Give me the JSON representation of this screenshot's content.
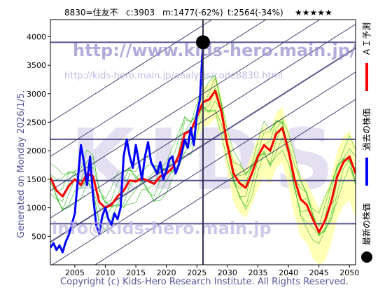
{
  "header": {
    "code_name": "8830=住友不",
    "current": "c:3903",
    "min": "m:1477(-62%)",
    "target": "t:2564(-34%)",
    "rating": "★★★★★"
  },
  "side_text": "Generated on Monday 2026/1/5.",
  "footer": "Copyright (c) Kids-Hero Research Institute. All Rights Reserved.",
  "watermarks": {
    "url": "http://www.kids-hero.main.jp/",
    "sub_url": "http://kids-hero.main.jp/analysis/code8830.html",
    "email": "info@kids-hero.main.jp",
    "logo": "KIDS"
  },
  "legend": [
    {
      "label": "ＡＩ予測",
      "color": "#ff0000",
      "marker": "line"
    },
    {
      "label": "過去の株価",
      "color": "#0000ff",
      "marker": "line"
    },
    {
      "label": "最新の株価",
      "color": "#000000",
      "marker": "dot"
    }
  ],
  "chart_data": {
    "type": "line",
    "xlim": [
      2001,
      2051
    ],
    "ylim": [
      0,
      4300
    ],
    "x_ticks": [
      2005,
      2010,
      2015,
      2020,
      2025,
      2030,
      2035,
      2040,
      2045,
      2050
    ],
    "y_ticks": [
      500,
      1000,
      1500,
      2000,
      2500,
      3000,
      3500,
      4000
    ],
    "horizontal_lines": [
      3903,
      2200,
      1477,
      720
    ],
    "vertical_line": 2026,
    "latest_point": {
      "x": 2026,
      "y": 3903
    },
    "series": [
      {
        "name": "過去の株価",
        "color": "#0000ff",
        "x": [
          2001.0,
          2001.5,
          2002.0,
          2002.5,
          2003.0,
          2003.5,
          2004.0,
          2004.5,
          2005.0,
          2005.5,
          2006.0,
          2006.5,
          2007.0,
          2007.5,
          2008.0,
          2008.5,
          2009.0,
          2009.5,
          2010.0,
          2010.5,
          2011.0,
          2011.5,
          2012.0,
          2012.5,
          2013.0,
          2013.5,
          2014.0,
          2014.5,
          2015.0,
          2015.5,
          2016.0,
          2016.5,
          2017.0,
          2017.5,
          2018.0,
          2018.5,
          2019.0,
          2019.5,
          2020.0,
          2020.5,
          2021.0,
          2021.5,
          2022.0,
          2022.5,
          2023.0,
          2023.5,
          2024.0,
          2024.5,
          2025.0,
          2025.5,
          2026.0
        ],
        "y": [
          300,
          380,
          260,
          340,
          220,
          400,
          520,
          700,
          900,
          1500,
          2100,
          1800,
          1400,
          1900,
          1200,
          700,
          550,
          850,
          1000,
          800,
          700,
          900,
          800,
          1000,
          1900,
          2200,
          1900,
          1700,
          2100,
          1800,
          1500,
          1900,
          2150,
          1800,
          1700,
          1600,
          1800,
          1500,
          1650,
          1850,
          1900,
          1600,
          1750,
          1950,
          2200,
          2050,
          2400,
          2100,
          2650,
          2900,
          3903
        ]
      },
      {
        "name": "ＡＩ予測",
        "color": "#ff0000",
        "x": [
          2001.0,
          2002.0,
          2003.0,
          2004.0,
          2005.0,
          2006.0,
          2007.0,
          2008.0,
          2009.0,
          2010.0,
          2011.0,
          2012.0,
          2013.0,
          2014.0,
          2015.0,
          2016.0,
          2017.0,
          2018.0,
          2019.0,
          2020.0,
          2021.0,
          2022.0,
          2023.0,
          2024.0,
          2025.0,
          2026.0,
          2027.0,
          2028.0,
          2029.0,
          2030.0,
          2031.0,
          2032.0,
          2033.0,
          2034.0,
          2035.0,
          2036.0,
          2037.0,
          2038.0,
          2039.0,
          2040.0,
          2041.0,
          2042.0,
          2043.0,
          2044.0,
          2045.0,
          2046.0,
          2047.0,
          2048.0,
          2049.0,
          2050.0,
          2051.0
        ],
        "y": [
          1530,
          1300,
          1200,
          1380,
          1500,
          1400,
          1600,
          1550,
          1100,
          1000,
          1050,
          1200,
          1300,
          1480,
          1460,
          1520,
          1470,
          1420,
          1550,
          1600,
          1700,
          1900,
          2300,
          2350,
          2600,
          2850,
          2900,
          3050,
          2700,
          2100,
          1600,
          1430,
          1350,
          1600,
          1900,
          2100,
          2000,
          2300,
          2400,
          2000,
          1500,
          1150,
          1050,
          800,
          570,
          780,
          1100,
          1550,
          1800,
          1900,
          1600
        ]
      }
    ]
  }
}
